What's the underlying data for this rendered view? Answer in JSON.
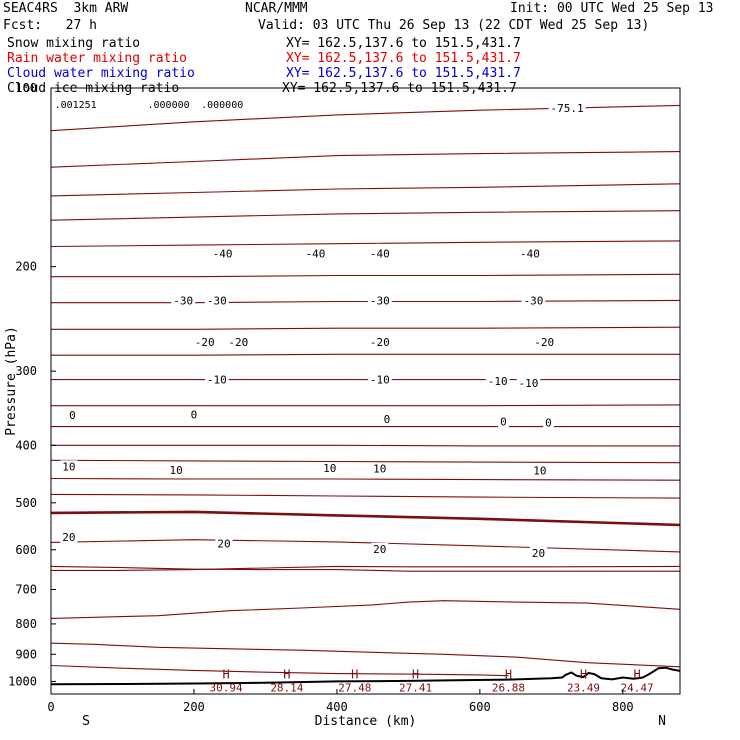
{
  "header": {
    "model": "SEAC4RS  3km ARW",
    "org": "NCAR/MMM",
    "init": "Init: 00 UTC Wed 25 Sep 13",
    "fcst": "Fcst:   27 h",
    "valid": "Valid: 03 UTC Thu 26 Sep 13 (22 CDT Wed 25 Sep 13)",
    "fields": [
      {
        "name": "Snow mixing ratio",
        "xy": "XY= 162.5,137.6 to 151.5,431.7",
        "color": "#000000"
      },
      {
        "name": "Rain water mixing ratio",
        "xy": "XY= 162.5,137.6 to 151.5,431.7",
        "color": "#e00000"
      },
      {
        "name": "Cloud water mixing ratio",
        "xy": "XY= 162.5,137.6 to 151.5,431.7",
        "color": "#0000cc"
      },
      {
        "name": "Cloud ice mixing ratio",
        "xy": "XY= 162.5,137.6 to 151.5,431.7",
        "color": "#000000"
      }
    ]
  },
  "chart_data": {
    "type": "line",
    "xlabel": "Distance (km)",
    "ylabel": "Pressure (hPa)",
    "xlim": [
      0,
      880
    ],
    "ylim": [
      100,
      1050
    ],
    "y_scale": "log",
    "x_ticks": [
      0,
      200,
      400,
      600,
      800
    ],
    "y_ticks": [
      100,
      200,
      300,
      400,
      500,
      600,
      700,
      800,
      900,
      1000
    ],
    "x_end_labels": {
      "left": "S",
      "right": "N"
    },
    "colors": {
      "isotherm": "#7a0f0f",
      "terrain": "#000000",
      "frame": "#000000"
    },
    "isotherms": [
      {
        "values": [
          [
            0,
            118
          ],
          [
            200,
            114
          ],
          [
            400,
            111
          ],
          [
            600,
            109
          ],
          [
            880,
            107
          ]
        ]
      },
      {
        "values": [
          [
            0,
            136
          ],
          [
            200,
            133
          ],
          [
            400,
            130
          ],
          [
            600,
            129
          ],
          [
            880,
            128
          ]
        ]
      },
      {
        "values": [
          [
            0,
            152
          ],
          [
            200,
            150
          ],
          [
            400,
            148
          ],
          [
            600,
            147
          ],
          [
            880,
            145
          ]
        ],
        "label": "-50"
      },
      {
        "values": [
          [
            0,
            167
          ],
          [
            200,
            165
          ],
          [
            400,
            163
          ],
          [
            600,
            162
          ],
          [
            880,
            161
          ]
        ]
      },
      {
        "values": [
          [
            0,
            185
          ],
          [
            200,
            184
          ],
          [
            400,
            183
          ],
          [
            600,
            182
          ],
          [
            880,
            181
          ]
        ]
      },
      {
        "values": [
          [
            0,
            208
          ],
          [
            200,
            208
          ],
          [
            400,
            207
          ],
          [
            600,
            207
          ],
          [
            880,
            206
          ]
        ],
        "label": "-40"
      },
      {
        "values": [
          [
            0,
            230
          ],
          [
            200,
            230
          ],
          [
            400,
            229
          ],
          [
            600,
            229
          ],
          [
            880,
            228
          ]
        ]
      },
      {
        "values": [
          [
            0,
            255
          ],
          [
            200,
            255
          ],
          [
            400,
            254
          ],
          [
            600,
            254
          ],
          [
            880,
            253
          ]
        ]
      },
      {
        "values": [
          [
            0,
            282
          ],
          [
            200,
            282
          ],
          [
            400,
            281
          ],
          [
            600,
            281
          ],
          [
            880,
            281
          ]
        ],
        "label": "-30"
      },
      {
        "values": [
          [
            0,
            310
          ],
          [
            200,
            310
          ],
          [
            400,
            310
          ],
          [
            600,
            310
          ],
          [
            880,
            310
          ]
        ]
      },
      {
        "values": [
          [
            0,
            343
          ],
          [
            200,
            343
          ],
          [
            400,
            343
          ],
          [
            600,
            343
          ],
          [
            880,
            342
          ]
        ]
      },
      {
        "values": [
          [
            0,
            372
          ],
          [
            200,
            372
          ],
          [
            400,
            372
          ],
          [
            600,
            372
          ],
          [
            880,
            372
          ]
        ],
        "label": "-20"
      },
      {
        "values": [
          [
            0,
            400
          ],
          [
            200,
            400
          ],
          [
            400,
            400
          ],
          [
            600,
            401
          ],
          [
            880,
            401
          ]
        ]
      },
      {
        "values": [
          [
            0,
            424
          ],
          [
            200,
            425
          ],
          [
            400,
            426
          ],
          [
            600,
            427
          ],
          [
            880,
            428
          ]
        ],
        "label": "-10"
      },
      {
        "values": [
          [
            0,
            455
          ],
          [
            200,
            456
          ],
          [
            400,
            456
          ],
          [
            600,
            457
          ],
          [
            880,
            458
          ]
        ]
      },
      {
        "values": [
          [
            0,
            484
          ],
          [
            200,
            485
          ],
          [
            400,
            487
          ],
          [
            600,
            489
          ],
          [
            880,
            491
          ]
        ]
      },
      {
        "values": [
          [
            0,
            520
          ],
          [
            200,
            518
          ],
          [
            400,
            525
          ],
          [
            600,
            532
          ],
          [
            880,
            545
          ]
        ],
        "label": "0",
        "bold": true
      },
      {
        "values": [
          [
            0,
            583
          ],
          [
            100,
            580
          ],
          [
            200,
            577
          ],
          [
            400,
            582
          ],
          [
            600,
            591
          ],
          [
            880,
            605
          ]
        ]
      },
      {
        "values": [
          [
            0,
            640
          ],
          [
            100,
            643
          ],
          [
            200,
            647
          ],
          [
            300,
            648
          ],
          [
            400,
            648
          ],
          [
            500,
            652
          ],
          [
            600,
            652
          ],
          [
            700,
            652
          ],
          [
            880,
            652
          ]
        ],
        "label": "10"
      },
      {
        "values": [
          [
            0,
            650
          ],
          [
            100,
            650
          ],
          [
            200,
            648
          ],
          [
            300,
            644
          ],
          [
            400,
            640
          ],
          [
            500,
            641
          ],
          [
            600,
            641
          ],
          [
            700,
            641
          ],
          [
            880,
            640
          ]
        ]
      },
      {
        "values": [
          [
            0,
            783
          ],
          [
            150,
            775
          ],
          [
            250,
            760
          ],
          [
            350,
            752
          ],
          [
            450,
            743
          ],
          [
            500,
            735
          ],
          [
            550,
            731
          ],
          [
            650,
            735
          ],
          [
            750,
            738
          ],
          [
            880,
            756
          ]
        ]
      },
      {
        "values": [
          [
            0,
            862
          ],
          [
            60,
            866
          ],
          [
            150,
            876
          ],
          [
            250,
            881
          ],
          [
            350,
            886
          ],
          [
            450,
            893
          ],
          [
            550,
            900
          ],
          [
            650,
            910
          ],
          [
            750,
            930
          ],
          [
            880,
            945
          ]
        ],
        "label": "20"
      },
      {
        "values": [
          [
            0,
            940
          ],
          [
            100,
            950
          ],
          [
            200,
            958
          ],
          [
            300,
            965
          ],
          [
            400,
            970
          ],
          [
            500,
            972
          ],
          [
            600,
            975
          ],
          [
            640,
            978
          ]
        ]
      }
    ],
    "isotherm_labels": [
      {
        "text": "-75.1",
        "x": 722,
        "p": 108
      },
      {
        "text": "-40",
        "x": 240,
        "p": 190
      },
      {
        "text": "-40",
        "x": 370,
        "p": 190
      },
      {
        "text": "-40",
        "x": 460,
        "p": 190
      },
      {
        "text": "-40",
        "x": 670,
        "p": 190
      },
      {
        "text": "-30",
        "x": 185,
        "p": 228
      },
      {
        "text": "-30",
        "x": 232,
        "p": 228
      },
      {
        "text": "-30",
        "x": 460,
        "p": 228
      },
      {
        "text": "-30",
        "x": 675,
        "p": 228
      },
      {
        "text": "-20",
        "x": 215,
        "p": 268
      },
      {
        "text": "-20",
        "x": 262,
        "p": 268
      },
      {
        "text": "-20",
        "x": 460,
        "p": 268
      },
      {
        "text": "-20",
        "x": 690,
        "p": 268
      },
      {
        "text": "-10",
        "x": 232,
        "p": 310
      },
      {
        "text": "-10",
        "x": 460,
        "p": 310
      },
      {
        "text": "-10",
        "x": 625,
        "p": 312
      },
      {
        "text": "-10",
        "x": 668,
        "p": 314
      },
      {
        "text": "0",
        "x": 30,
        "p": 356
      },
      {
        "text": "0",
        "x": 200,
        "p": 355
      },
      {
        "text": "0",
        "x": 470,
        "p": 361
      },
      {
        "text": "0",
        "x": 633,
        "p": 365
      },
      {
        "text": "0",
        "x": 696,
        "p": 366
      },
      {
        "text": "10",
        "x": 25,
        "p": 434
      },
      {
        "text": "10",
        "x": 175,
        "p": 440
      },
      {
        "text": "10",
        "x": 390,
        "p": 437
      },
      {
        "text": "10",
        "x": 460,
        "p": 438
      },
      {
        "text": "10",
        "x": 684,
        "p": 441
      },
      {
        "text": "20",
        "x": 25,
        "p": 571
      },
      {
        "text": "20",
        "x": 242,
        "p": 585
      },
      {
        "text": "20",
        "x": 460,
        "p": 598
      },
      {
        "text": "20",
        "x": 682,
        "p": 607
      }
    ],
    "terrain": [
      [
        0,
        1011
      ],
      [
        100,
        1010
      ],
      [
        200,
        1008
      ],
      [
        300,
        1005
      ],
      [
        400,
        1000
      ],
      [
        500,
        998
      ],
      [
        580,
        995
      ],
      [
        640,
        993
      ],
      [
        700,
        988
      ],
      [
        715,
        985
      ],
      [
        720,
        975
      ],
      [
        728,
        966
      ],
      [
        735,
        978
      ],
      [
        745,
        983
      ],
      [
        752,
        968
      ],
      [
        760,
        972
      ],
      [
        770,
        988
      ],
      [
        785,
        992
      ],
      [
        800,
        985
      ],
      [
        815,
        990
      ],
      [
        828,
        985
      ],
      [
        835,
        975
      ],
      [
        843,
        962
      ],
      [
        850,
        950
      ],
      [
        860,
        948
      ],
      [
        870,
        955
      ],
      [
        880,
        960
      ]
    ],
    "surface_maxima": [
      {
        "text": "H",
        "value": "30.94",
        "x": 245
      },
      {
        "text": "H",
        "value": "28.14",
        "x": 330
      },
      {
        "text": "H",
        "value": "27.48",
        "x": 425
      },
      {
        "text": "H",
        "value": "27.41",
        "x": 510
      },
      {
        "text": "H",
        "value": "26.88",
        "x": 640
      },
      {
        "text": "H",
        "value": "23.49",
        "x": 745
      },
      {
        "text": "H",
        "value": "24.47",
        "x": 820
      }
    ],
    "top_annotations": [
      {
        "text": ".001251",
        "x": 5
      },
      {
        "text": ".000000",
        "x": 135
      },
      {
        "text": ".000000",
        "x": 210
      }
    ]
  }
}
